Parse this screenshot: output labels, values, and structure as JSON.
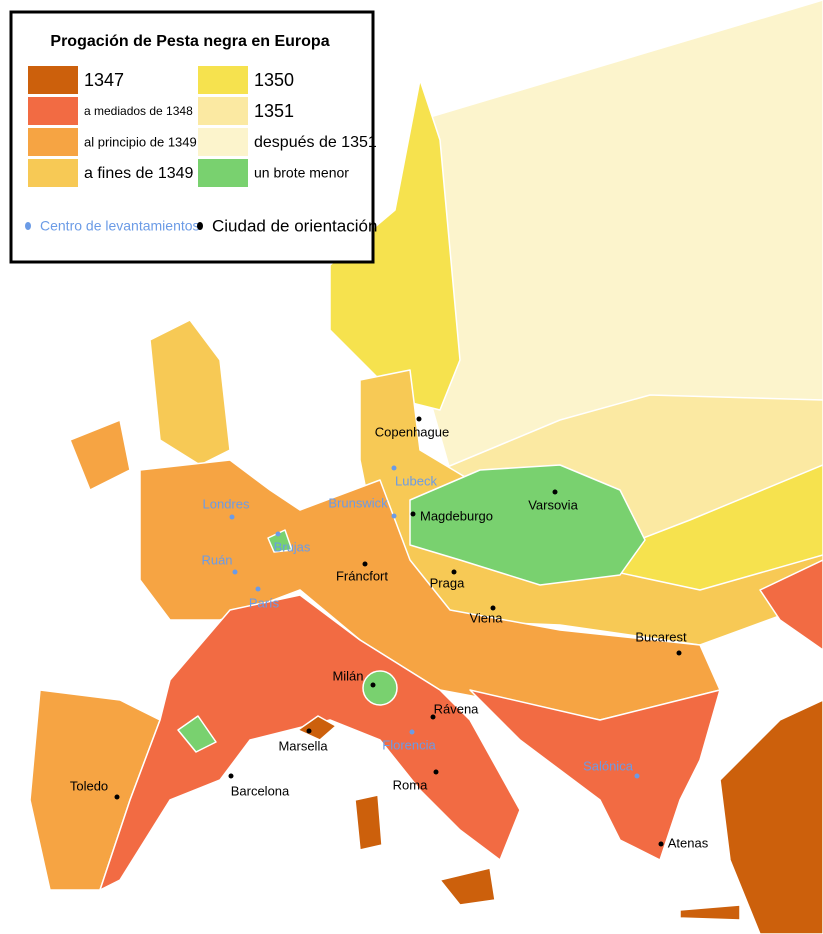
{
  "title": "Progación de Pesta negra en Europa",
  "legend": [
    {
      "label": "1347",
      "color": "#cc600c"
    },
    {
      "label": "a mediados de 1348",
      "color": "#f26b43"
    },
    {
      "label": "al principio de 1349",
      "color": "#f6a443"
    },
    {
      "label": "a fines de 1349",
      "color": "#f7c955"
    },
    {
      "label": "1350",
      "color": "#f6e24e"
    },
    {
      "label": "1351",
      "color": "#fbe9a2"
    },
    {
      "label": "después de 1351",
      "color": "#fcf4cc"
    },
    {
      "label": "un brote menor",
      "color": "#79d16f"
    }
  ],
  "markers": [
    {
      "label": "Centro de levantamientos",
      "color": "#6b9be6"
    },
    {
      "label": "Ciudad de orientación",
      "color": "#000000"
    }
  ],
  "cities": [
    "Copenhague",
    "Magdeburgo",
    "Varsovia",
    "Fráncfort",
    "Praga",
    "Viena",
    "Bucarest",
    "Milán",
    "Rávena",
    "Marsella",
    "Barcelona",
    "Toledo",
    "Roma",
    "Atenas"
  ],
  "uprisings": [
    "Lubeck",
    "Brunswick",
    "Londres",
    "Brujas",
    "Ruán",
    "París",
    "Florencia",
    "Salónica"
  ]
}
